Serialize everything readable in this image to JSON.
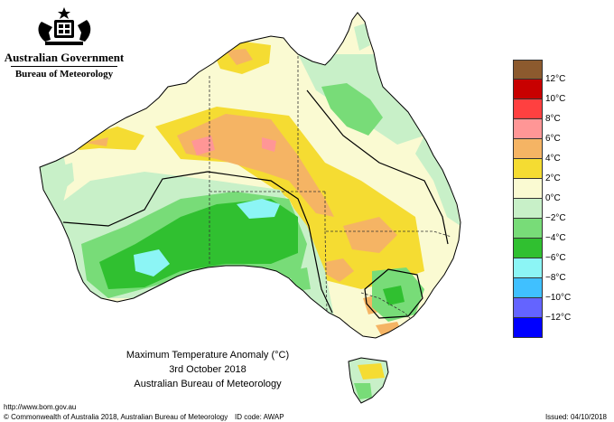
{
  "header": {
    "gov_name": "Australian Government",
    "agency_name": "Bureau of Meteorology",
    "crest_icon": "coat-of-arms-icon"
  },
  "title": {
    "line1": "Maximum Temperature Anomaly (°C)",
    "line2": "3rd October 2018",
    "line3": "Australian Bureau of Meteorology"
  },
  "legend": {
    "items": [
      {
        "label": "12°C",
        "color": "#8c5a2e"
      },
      {
        "label": "10°C",
        "color": "#c80000"
      },
      {
        "label": "8°C",
        "color": "#ff4040"
      },
      {
        "label": "6°C",
        "color": "#ff9696"
      },
      {
        "label": "4°C",
        "color": "#f5b464"
      },
      {
        "label": "2°C",
        "color": "#f5dc32"
      },
      {
        "label": "0°C",
        "color": "#fafad2"
      },
      {
        "label": "−2°C",
        "color": "#c8f0c8"
      },
      {
        "label": "−4°C",
        "color": "#78dc78"
      },
      {
        "label": "−6°C",
        "color": "#30c030"
      },
      {
        "label": "−8°C",
        "color": "#8cf5f5"
      },
      {
        "label": "−10°C",
        "color": "#40c0ff"
      },
      {
        "label": "−12°C",
        "color": "#6464ff"
      }
    ],
    "bottom_color": "#0000ff"
  },
  "footer": {
    "url": "http://www.bom.gov.au",
    "copyright": "© Commonwealth of Australia 2018, Australian Bureau of Meteorology",
    "id_code": "ID code: AWAP",
    "issued": "Issued: 04/10/2018"
  }
}
